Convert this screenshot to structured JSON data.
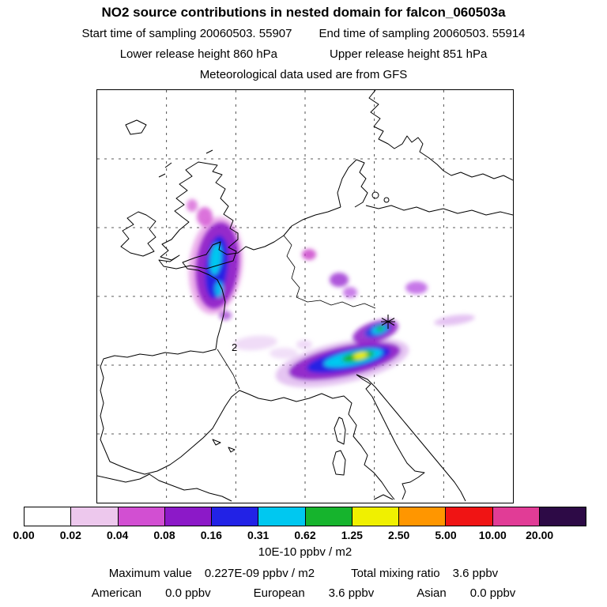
{
  "header": {
    "title": "NO2 source contributions in nested domain for falcon_060503a",
    "start_time": "Start time of sampling 20060503. 55907",
    "end_time": "End time of sampling 20060503. 55914",
    "lower_release": "Lower release height  860 hPa",
    "upper_release": "Upper release height  851 hPa",
    "met_source": "Meteorological data used are from GFS"
  },
  "map": {
    "contour_label": "2"
  },
  "colorbar": {
    "ticks": [
      "0.00",
      "0.02",
      "0.04",
      "0.08",
      "0.16",
      "0.31",
      "0.62",
      "1.25",
      "2.50",
      "5.00",
      "10.00",
      "20.00"
    ],
    "segment_colors": [
      "#ffffff",
      "#edc8ed",
      "#d24fd2",
      "#8c19c8",
      "#2222e6",
      "#00c8f0",
      "#16b42d",
      "#f0f000",
      "#ff9600",
      "#f01414",
      "#e13c96",
      "#2d0a46"
    ],
    "units_label": "10E-10 ppbv / m2"
  },
  "footer": {
    "max_label": "Maximum value",
    "max_value": "0.227E-09 ppbv / m2",
    "total_label": "Total mixing ratio",
    "total_value": "3.6 ppbv",
    "contributions": [
      {
        "region": "American",
        "value": "0.0 ppbv"
      },
      {
        "region": "European",
        "value": "3.6 ppbv"
      },
      {
        "region": "Asian",
        "value": "0.0 ppbv"
      }
    ]
  },
  "chart_data": {
    "type": "heatmap",
    "title": "NO2 source contributions in nested domain for falcon_060503a",
    "units": "10E-10 ppbv / m2",
    "levels": [
      0.0,
      0.02,
      0.04,
      0.08,
      0.16,
      0.31,
      0.62,
      1.25,
      2.5,
      5.0,
      10.0,
      20.0
    ],
    "level_colors": [
      "#ffffff",
      "#edc8ed",
      "#d24fd2",
      "#8c19c8",
      "#2222e6",
      "#00c8f0",
      "#16b42d",
      "#f0f000",
      "#ff9600",
      "#f01414",
      "#e13c96",
      "#2d0a46"
    ],
    "maximum_value": "0.227E-09 ppbv / m2",
    "total_mixing_ratio": "3.6 ppbv",
    "contributions": {
      "American": "0.0 ppbv",
      "European": "3.6 ppbv",
      "Asian": "0.0 ppbv"
    },
    "sampling": {
      "start": "20060503. 55907",
      "end": "20060503. 55914"
    },
    "release_heights": {
      "lower": "860 hPa",
      "upper": "851 hPa"
    },
    "met_data": "GFS",
    "legend_position": "bottom",
    "grid": "dashed lat/lon grid over Europe map"
  }
}
